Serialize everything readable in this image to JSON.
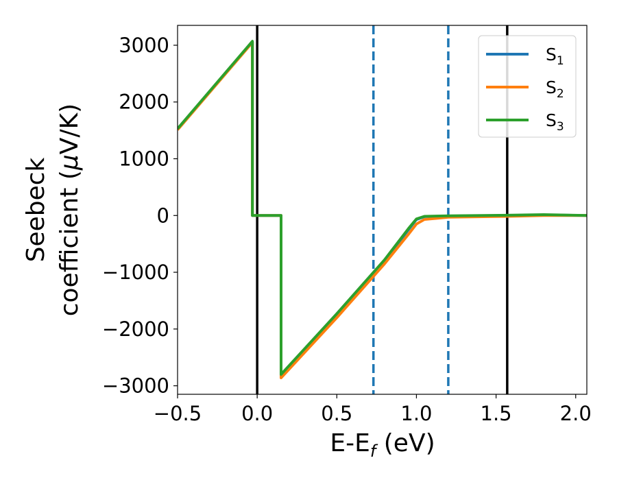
{
  "chart_data": {
    "type": "line",
    "xlabel": "E-E",
    "xlabel_sub": "f",
    "xlabel_unit": " (eV)",
    "ylabel_line1": "Seebeck",
    "ylabel_line2": "coefficient  (",
    "ylabel_mu": "μ",
    "ylabel_unit": "V/K)",
    "xlim": [
      -0.5,
      2.07
    ],
    "ylim": [
      -3150,
      3350
    ],
    "xticks": [
      -0.5,
      0.0,
      0.5,
      1.0,
      1.5,
      2.0
    ],
    "xtick_labels": [
      "−0.5",
      "0.0",
      "0.5",
      "1.0",
      "1.5",
      "2.0"
    ],
    "yticks": [
      3000,
      2000,
      1000,
      0,
      -1000,
      -2000,
      -3000
    ],
    "ytick_labels": [
      "3000",
      "2000",
      "1000",
      "0",
      "−1000",
      "−2000",
      "−3000"
    ],
    "grid": false,
    "legend_position": "top-right",
    "vlines": [
      {
        "x": 0.0,
        "style": "solid",
        "color": "#000000"
      },
      {
        "x": 1.57,
        "style": "solid",
        "color": "#000000"
      },
      {
        "x": 0.73,
        "style": "dashed",
        "color": "#1f77b4"
      },
      {
        "x": 1.2,
        "style": "dashed",
        "color": "#1f77b4"
      }
    ],
    "series": [
      {
        "name": "S",
        "sub": "1",
        "color": "#1f77b4",
        "points": [
          [
            -0.5,
            1520
          ],
          [
            -0.03,
            3060
          ],
          [
            -0.03,
            0
          ],
          [
            0.15,
            0
          ],
          [
            0.15,
            -2820
          ],
          [
            0.5,
            -1750
          ],
          [
            0.8,
            -800
          ],
          [
            0.95,
            -250
          ],
          [
            1.0,
            -70
          ],
          [
            1.05,
            -20
          ],
          [
            1.2,
            -10
          ],
          [
            1.57,
            0
          ],
          [
            1.8,
            10
          ],
          [
            2.07,
            0
          ]
        ]
      },
      {
        "name": "S",
        "sub": "2",
        "color": "#ff7f0e",
        "points": [
          [
            -0.5,
            1510
          ],
          [
            -0.03,
            3050
          ],
          [
            -0.03,
            0
          ],
          [
            0.15,
            0
          ],
          [
            0.15,
            -2860
          ],
          [
            0.5,
            -1800
          ],
          [
            0.8,
            -850
          ],
          [
            0.95,
            -330
          ],
          [
            1.0,
            -150
          ],
          [
            1.05,
            -70
          ],
          [
            1.2,
            -30
          ],
          [
            1.57,
            -15
          ],
          [
            1.8,
            0
          ],
          [
            2.07,
            0
          ]
        ]
      },
      {
        "name": "S",
        "sub": "3",
        "color": "#2ca02c",
        "points": [
          [
            -0.5,
            1530
          ],
          [
            -0.03,
            3070
          ],
          [
            -0.03,
            0
          ],
          [
            0.15,
            0
          ],
          [
            0.15,
            -2800
          ],
          [
            0.5,
            -1730
          ],
          [
            0.8,
            -780
          ],
          [
            0.95,
            -230
          ],
          [
            1.0,
            -60
          ],
          [
            1.05,
            -15
          ],
          [
            1.2,
            -5
          ],
          [
            1.57,
            5
          ],
          [
            1.8,
            15
          ],
          [
            2.07,
            0
          ]
        ]
      }
    ]
  }
}
